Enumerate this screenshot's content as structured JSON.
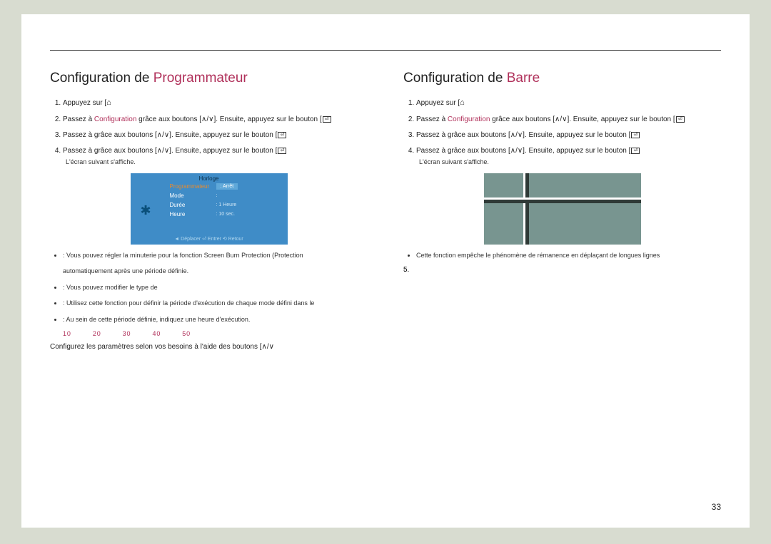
{
  "pageNumber": "33",
  "left": {
    "heading_prefix": "Configuration de ",
    "heading_accent": "Programmateur",
    "steps": [
      {
        "pre": "Appuyez sur [",
        "icon": "home",
        "post": ""
      },
      {
        "pre": "Passez à ",
        "cfg": "Configuration",
        "mid": " grâce aux boutons [",
        "icon": "updown",
        "mid2": "]. Ensuite, appuyez sur le bouton [",
        "icon2": "enter",
        "post": ""
      },
      {
        "pre": "Passez à                         grâce aux boutons [",
        "icon": "updown",
        "mid2": "]. Ensuite, appuyez sur le bouton [",
        "icon2": "enter",
        "post": ""
      },
      {
        "pre": "Passez à                grâce aux boutons [",
        "icon": "updown",
        "mid2": "]. Ensuite, appuyez sur le bouton [",
        "icon2": "enter",
        "post": "",
        "sub": "L'écran suivant s'affiche."
      }
    ],
    "menu": {
      "title": "Horloge",
      "rows": [
        {
          "label": "Programmateur",
          "val": "Arrêt",
          "orange": true,
          "boxed": true
        },
        {
          "label": "Mode",
          "val": ""
        },
        {
          "label": "Durée",
          "val": "1 Heure"
        },
        {
          "label": "Heure",
          "val": "10 sec."
        }
      ],
      "footer": "◄ Déplacer   ⏎ Entrer   ⟲ Retour"
    },
    "bullets": [
      ": Vous pouvez régler la minuterie pour la fonction Screen Burn Protection (Protection",
      "automatiquement après une période définie.",
      ": Vous pouvez modifier le type de",
      ": Utilisez cette fonction pour définir la période d'exécution de chaque mode défini dans le",
      ": Au sein de cette période définie, indiquez une heure d'exécution."
    ],
    "nums": [
      "10",
      "20",
      "30",
      "40",
      "50"
    ],
    "final": "Configurez les paramètres selon vos besoins à l'aide des boutons ["
  },
  "right": {
    "heading_prefix": "Configuration de ",
    "heading_accent": "Barre",
    "steps": [
      {
        "pre": "Appuyez sur [",
        "icon": "home",
        "post": ""
      },
      {
        "pre": "Passez à ",
        "cfg": "Configuration",
        "mid": " grâce aux boutons [",
        "icon": "updown",
        "mid2": "]. Ensuite, appuyez sur le bouton [",
        "icon2": "enter",
        "post": ""
      },
      {
        "pre": "Passez à                         grâce aux boutons [",
        "icon": "updown",
        "mid2": "]. Ensuite, appuyez sur le bouton [",
        "icon2": "enter",
        "post": ""
      },
      {
        "pre": "Passez à             grâce aux boutons [",
        "icon": "updown",
        "mid2": "]. Ensuite, appuyez sur le bouton [",
        "icon2": "enter",
        "post": "",
        "sub": "L'écran suivant s'affiche."
      }
    ],
    "bullets": [
      "Cette fonction empêche le phénomène de rémanence en déplaçant de longues lignes"
    ],
    "step5": "5."
  }
}
